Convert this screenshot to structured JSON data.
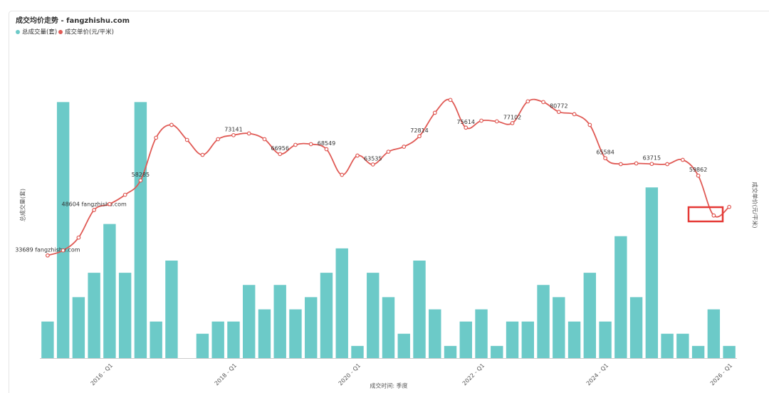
{
  "chart_data": {
    "type": "bar-line",
    "title": "成交均价走势 - fangzhishu.com",
    "x_label": "成交时间: 季度",
    "y_label": "总成交量(套)",
    "y2_label": "成交单价(元/平米)",
    "categories": [
      null,
      null,
      null,
      null,
      "2016 - Q1",
      null,
      null,
      null,
      null,
      null,
      null,
      null,
      "2018 - Q1",
      null,
      null,
      null,
      null,
      null,
      null,
      null,
      "2020 - Q1",
      null,
      null,
      null,
      null,
      null,
      null,
      null,
      "2022 - Q1",
      null,
      null,
      null,
      null,
      null,
      null,
      null,
      "2024 - Q1",
      null,
      null,
      null,
      null,
      null,
      null,
      null,
      "2026 - Q1"
    ],
    "ylim": [
      0,
      24
    ],
    "y2lim": [
      0,
      96000
    ],
    "series": [
      {
        "name": "总成交量(套)",
        "type": "bar",
        "color": "#6ccac8",
        "values": [
          3,
          21,
          5,
          7,
          11,
          7,
          21,
          3,
          8,
          0,
          2,
          3,
          3,
          6,
          4,
          6,
          4,
          5,
          7,
          9,
          1,
          7,
          5,
          2,
          8,
          4,
          1,
          3,
          4,
          1,
          3,
          3,
          6,
          5,
          3,
          7,
          3,
          10,
          5,
          14,
          2,
          2,
          1,
          4,
          1
        ]
      },
      {
        "name": "成交单价(元/平米)",
        "type": "line",
        "axis": "y2",
        "color": "#e05a55",
        "values": [
          33689,
          35327,
          39539,
          48604,
          50537,
          53579,
          58285,
          72299,
          76511,
          71597,
          66683,
          71831,
          73141,
          73703,
          71831,
          66956,
          69959,
          70193,
          68549,
          60131,
          66449,
          63535,
          67715,
          69353,
          72814,
          80489,
          84701,
          75614,
          77897,
          77663,
          77102,
          84233,
          83999,
          80772,
          80021,
          76511,
          65584,
          63641,
          63875,
          63715,
          63641,
          65045,
          59862,
          46793,
          49601
        ],
        "value_labels": [
          "33689 fangzhishu.com",
          null,
          null,
          "48604 fangzhishu.com",
          null,
          null,
          "58285",
          null,
          null,
          null,
          null,
          null,
          "73141",
          null,
          null,
          "66956",
          null,
          null,
          "68549",
          null,
          null,
          "63535",
          null,
          null,
          "72814",
          null,
          null,
          "75614",
          null,
          null,
          "77102",
          null,
          null,
          "80772",
          null,
          null,
          "65584",
          null,
          null,
          "63715",
          null,
          null,
          "59862",
          null,
          null
        ]
      }
    ]
  }
}
